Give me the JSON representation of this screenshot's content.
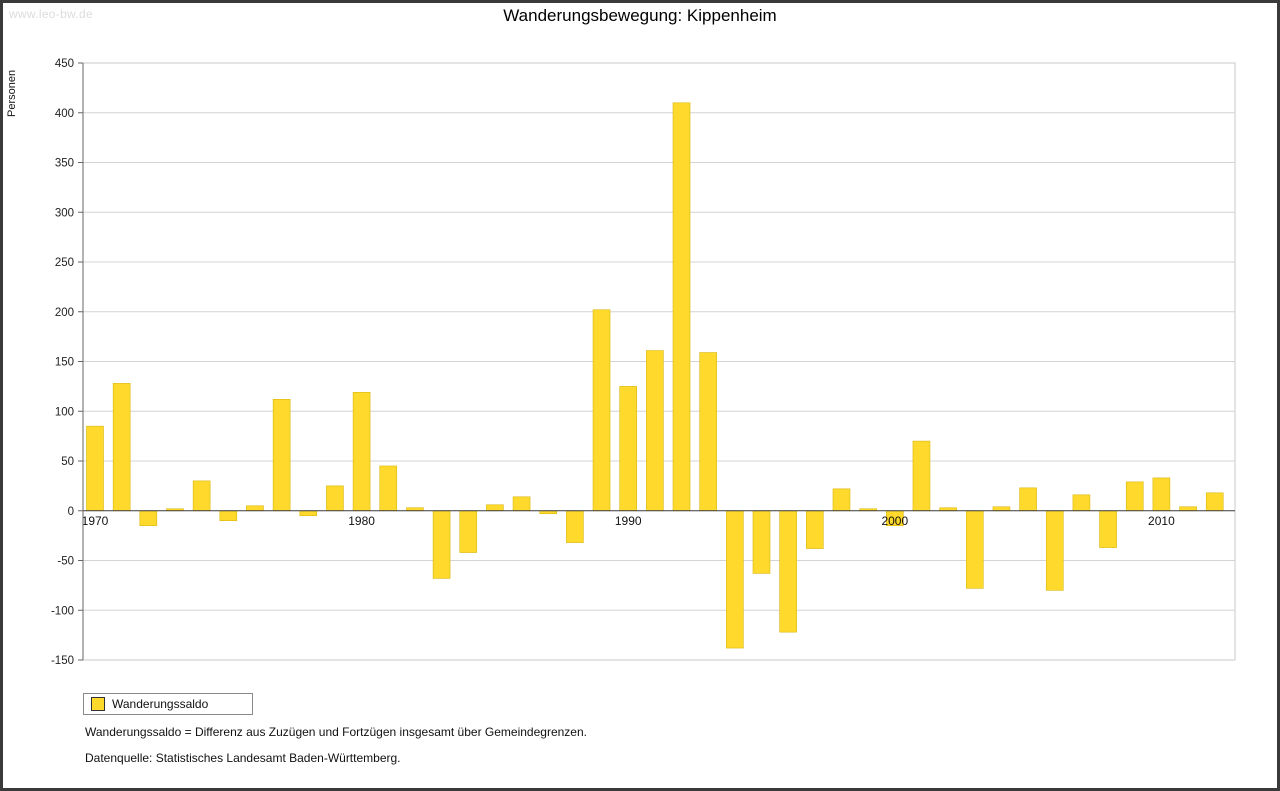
{
  "watermark": "www.leo-bw.de",
  "footnotes": {
    "line1": "Wanderungssaldo = Differenz aus Zuzügen und Fortzügen insgesamt über Gemeindegrenzen.",
    "line2": "Datenquelle: Statistisches Landesamt Baden-Württemberg."
  },
  "colors": {
    "bar": "#FFD92B",
    "bar_border": "#D9B70F",
    "grid": "#d4d4d4",
    "plot_border": "#c8c8c8",
    "axis": "#666666",
    "zero_line": "#3a3a3a"
  },
  "chart_data": {
    "type": "bar",
    "title": "Wanderungsbewegung: Kippenheim",
    "ylabel": "Personen",
    "series_name": "Wanderungssaldo",
    "years": [
      1970,
      1971,
      1972,
      1973,
      1974,
      1975,
      1976,
      1977,
      1978,
      1979,
      1980,
      1981,
      1982,
      1983,
      1984,
      1985,
      1986,
      1987,
      1988,
      1989,
      1990,
      1991,
      1992,
      1993,
      1994,
      1995,
      1996,
      1997,
      1998,
      1999,
      2000,
      2001,
      2002,
      2003,
      2004,
      2005,
      2006,
      2007,
      2008,
      2009,
      2010,
      2011,
      2012
    ],
    "values": [
      85,
      128,
      -15,
      2,
      30,
      -10,
      5,
      112,
      -5,
      25,
      119,
      45,
      3,
      -68,
      -42,
      6,
      14,
      -3,
      -32,
      202,
      125,
      161,
      410,
      159,
      -138,
      -63,
      -122,
      -38,
      22,
      2,
      -15,
      70,
      3,
      -78,
      4,
      23,
      -80,
      16,
      -37,
      29,
      33,
      4,
      18
    ],
    "ylim": [
      -150,
      450
    ],
    "ytick_step": 50,
    "xticks": [
      1970,
      1980,
      1990,
      2000,
      2010
    ],
    "grid": true,
    "legend_position": "bottom-left"
  }
}
